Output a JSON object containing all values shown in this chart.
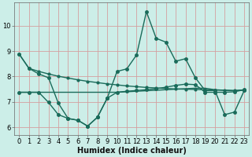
{
  "xlabel": "Humidex (Indice chaleur)",
  "bg_color": "#cceee8",
  "grid_color": "#d4a0a0",
  "line_color": "#1a6b5a",
  "xlim": [
    -0.5,
    23.5
  ],
  "ylim": [
    5.7,
    10.9
  ],
  "xticks": [
    0,
    1,
    2,
    3,
    4,
    5,
    6,
    7,
    8,
    9,
    10,
    11,
    12,
    13,
    14,
    15,
    16,
    17,
    18,
    19,
    20,
    21,
    22,
    23
  ],
  "yticks": [
    6,
    7,
    8,
    9,
    10
  ],
  "line1_x": [
    0,
    1,
    2,
    3,
    4,
    5,
    6,
    7,
    8,
    9,
    10,
    11,
    12,
    13,
    14,
    15,
    16,
    17,
    18,
    19,
    20,
    21,
    22,
    23
  ],
  "line1_y": [
    8.88,
    8.32,
    8.2,
    8.1,
    8.01,
    7.94,
    7.87,
    7.81,
    7.76,
    7.71,
    7.67,
    7.63,
    7.6,
    7.57,
    7.55,
    7.53,
    7.51,
    7.5,
    7.49,
    7.48,
    7.47,
    7.46,
    7.45,
    7.46
  ],
  "line2_x": [
    0,
    1,
    2,
    3,
    4,
    5,
    6,
    7,
    8,
    9,
    10,
    11,
    12,
    13,
    14,
    15,
    16,
    17,
    18,
    19,
    20,
    21,
    22,
    23
  ],
  "line2_y": [
    7.38,
    7.38,
    7.38,
    7.38,
    7.38,
    7.38,
    7.38,
    7.38,
    7.38,
    7.38,
    7.38,
    7.4,
    7.42,
    7.44,
    7.46,
    7.48,
    7.5,
    7.52,
    7.54,
    7.54,
    7.48,
    7.46,
    7.44,
    7.48
  ],
  "line3_x": [
    0,
    1,
    2,
    3,
    4,
    5,
    6,
    7,
    8,
    9,
    10,
    11,
    12,
    13,
    14,
    15,
    16,
    17,
    18,
    19,
    20,
    21,
    22,
    23
  ],
  "line3_y": [
    7.38,
    7.38,
    7.38,
    6.98,
    6.5,
    6.35,
    6.28,
    6.05,
    6.4,
    7.15,
    7.38,
    7.42,
    7.45,
    7.48,
    7.52,
    7.58,
    7.65,
    7.7,
    7.68,
    7.38,
    7.38,
    7.38,
    7.4,
    7.48
  ],
  "line4_x": [
    0,
    1,
    2,
    3,
    4,
    5,
    6,
    7,
    8,
    9,
    10,
    11,
    12,
    13,
    14,
    15,
    16,
    17,
    18,
    19,
    20,
    21,
    22,
    23
  ],
  "line4_y": [
    8.88,
    8.32,
    8.1,
    7.95,
    6.95,
    6.35,
    6.28,
    6.05,
    6.4,
    7.15,
    8.2,
    8.3,
    8.85,
    10.55,
    9.5,
    9.35,
    8.6,
    8.7,
    7.95,
    7.45,
    7.45,
    6.5,
    6.6,
    7.45
  ],
  "marker_size": 2.5,
  "linewidth": 1.0,
  "tick_fontsize": 6,
  "label_fontsize": 7,
  "label_fontweight": "bold"
}
